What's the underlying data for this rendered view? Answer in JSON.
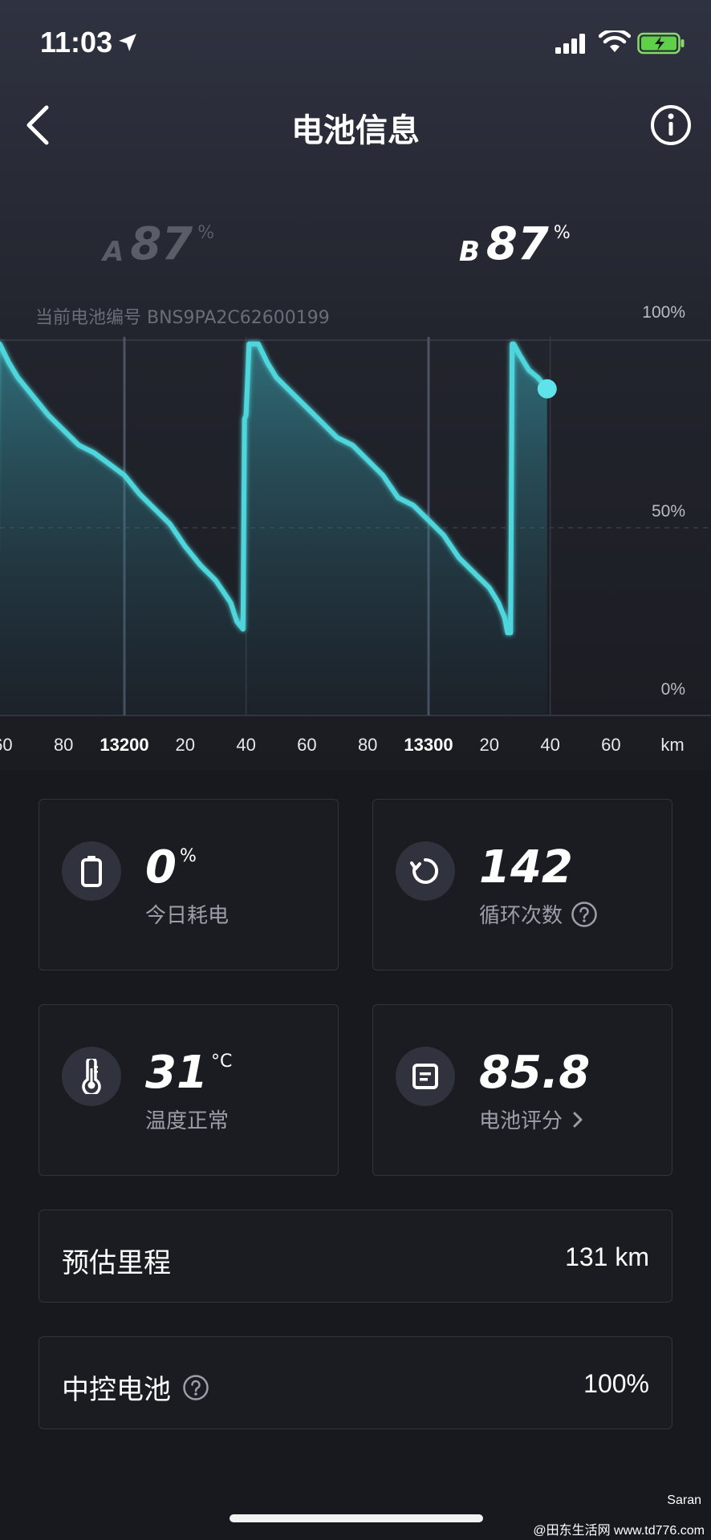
{
  "status_bar": {
    "time": "11:03"
  },
  "nav": {
    "title": "电池信息"
  },
  "batteries": {
    "a": {
      "letter": "A",
      "value": "87",
      "unit": "%"
    },
    "b": {
      "letter": "B",
      "value": "87",
      "unit": "%"
    }
  },
  "battery_id_text": "当前电池编号 BNS9PA2C62600199",
  "chart_data": {
    "type": "line",
    "xlabel": "",
    "x_unit": "km",
    "y_ticks": [
      "100%",
      "50%",
      "0%"
    ],
    "ylim": [
      0,
      100
    ],
    "xlim": [
      13152,
      13364
    ],
    "x_tick_labels": [
      "60",
      "80",
      "13200",
      "20",
      "40",
      "60",
      "80",
      "13300",
      "20",
      "40",
      "60"
    ],
    "x_tick_values": [
      13160,
      13180,
      13200,
      13220,
      13240,
      13260,
      13280,
      13300,
      13320,
      13340,
      13360
    ],
    "major_ticks": [
      13200,
      13300
    ],
    "series": [
      {
        "x": [
          13152,
          13155,
          13156,
          13157,
          13157.5,
          13158,
          13159,
          13162,
          13165,
          13170,
          13175,
          13180,
          13185,
          13190,
          13195,
          13200,
          13205,
          13210,
          13215,
          13220,
          13225,
          13230,
          13235,
          13237,
          13238,
          13239,
          13239.5,
          13240,
          13241,
          13244,
          13247,
          13250,
          13255,
          13260,
          13265,
          13270,
          13275,
          13280,
          13285,
          13290,
          13295,
          13300,
          13305,
          13310,
          13315,
          13320,
          13323,
          13325,
          13326,
          13327,
          13327.5,
          13328,
          13330,
          13333,
          13336,
          13339
        ],
        "y": [
          32,
          29,
          44,
          44,
          75,
          99,
          99,
          94,
          90,
          85,
          80,
          76,
          72,
          70,
          67,
          64,
          59,
          55,
          51,
          45,
          40,
          36,
          30,
          25,
          24,
          23,
          79,
          80,
          99,
          99,
          94,
          90,
          86,
          82,
          78,
          74,
          72,
          68,
          64,
          58,
          56,
          52,
          48,
          42,
          38,
          34,
          30,
          26,
          22,
          22,
          99,
          99,
          96,
          92,
          90,
          87
        ]
      }
    ]
  },
  "cards": {
    "daily": {
      "value": "0",
      "unit": "%",
      "label": "今日耗电"
    },
    "cycles": {
      "value": "142",
      "label": "循环次数"
    },
    "temp": {
      "value": "31",
      "unit": "°C",
      "label": "温度正常"
    },
    "score": {
      "value": "85.8",
      "label": "电池评分"
    }
  },
  "rows": {
    "range": {
      "title": "预估里程",
      "value": "131 km"
    },
    "central": {
      "title": "中控电池",
      "value": "100%"
    }
  },
  "watermark": {
    "name": "Saran",
    "site": "@田东生活网 www.td776.com"
  },
  "colors": {
    "accent": "#4fd6dc",
    "background": "#18191e"
  },
  "icons": [
    "location-arrow-icon",
    "signal-icon",
    "wifi-icon",
    "battery-charging-icon",
    "back-chevron-icon",
    "info-icon",
    "battery-icon",
    "refresh-cycle-icon",
    "thermometer-icon",
    "document-icon",
    "help-icon",
    "chevron-right-icon"
  ]
}
